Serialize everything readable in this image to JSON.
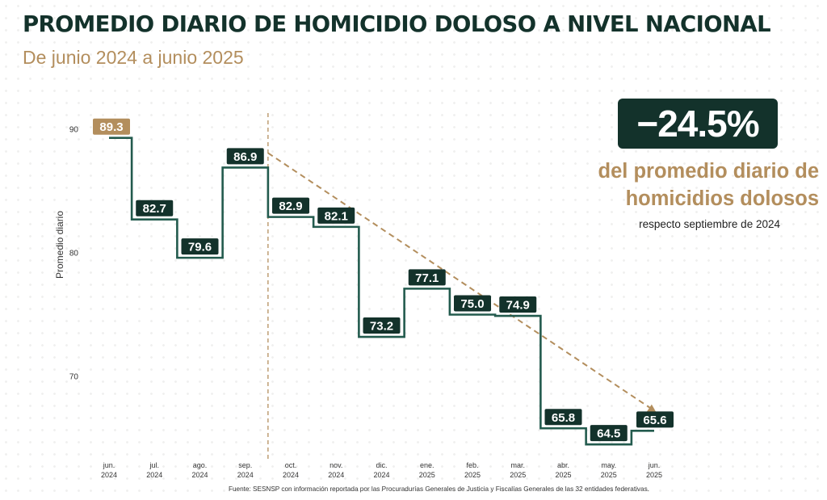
{
  "title": "PROMEDIO DIARIO DE HOMICIDIO DOLOSO A NIVEL NACIONAL",
  "subtitle": "De junio 2024 a junio 2025",
  "kpi": {
    "value": "−24.5%",
    "line1": "del promedio diario de",
    "line2": "homicidios dolosos",
    "note": "respecto septiembre de 2024"
  },
  "source": "Fuente: SESNSP con información reportada por las Procuradurías Generales de Justicia y Fiscalías Generales de las 32 entidades federativas.",
  "colors": {
    "dark_green": "#13322b",
    "line_green": "#235b4e",
    "gold": "#b38e5d"
  },
  "chart_data": {
    "type": "line",
    "step": true,
    "ylabel": "Promedio diario",
    "yticks": [
      70,
      80,
      90
    ],
    "ylim": [
      60,
      95
    ],
    "categories": [
      [
        "jun.",
        "2024"
      ],
      [
        "jul.",
        "2024"
      ],
      [
        "ago.",
        "2024"
      ],
      [
        "sep.",
        "2024"
      ],
      [
        "oct.",
        "2024"
      ],
      [
        "nov.",
        "2024"
      ],
      [
        "dic.",
        "2024"
      ],
      [
        "ene.",
        "2025"
      ],
      [
        "feb.",
        "2025"
      ],
      [
        "mar.",
        "2025"
      ],
      [
        "abr.",
        "2025"
      ],
      [
        "may.",
        "2025"
      ],
      [
        "jun.",
        "2025"
      ]
    ],
    "series": [
      {
        "values": [
          89.3,
          82.7,
          79.6,
          86.9,
          82.9,
          82.1,
          73.2,
          77.1,
          75.0,
          74.9,
          65.8,
          64.5,
          65.6
        ],
        "labels": [
          "89.3",
          "82.7",
          "79.6",
          "86.9",
          "82.9",
          "82.1",
          "73.2",
          "77.1",
          "75.0",
          "74.9",
          "65.8",
          "64.5",
          "65.6"
        ]
      }
    ],
    "reference_line_at": [
      "sep.",
      "2024"
    ],
    "trend_arrow": {
      "from": [
        "sep.",
        "2024"
      ],
      "to": [
        "jun.",
        "2025"
      ]
    },
    "grid": false
  }
}
